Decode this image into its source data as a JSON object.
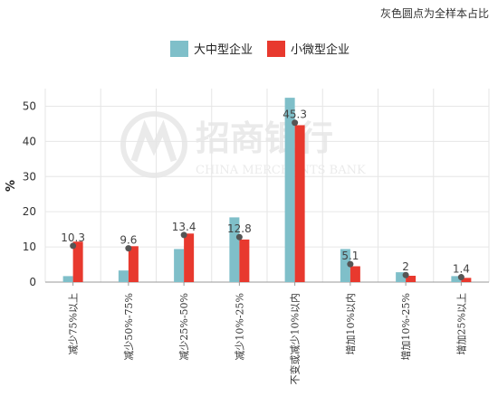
{
  "note": "灰色圆点为全样本占比",
  "watermark": {
    "name": "招商银行",
    "english": "CHINA MERCHANTS BANK"
  },
  "colors": {
    "large": "#7fbfc9",
    "small": "#e8392e",
    "dot": "#555555",
    "grid": "#e6e6e6",
    "axis": "#999999"
  },
  "chart_data": {
    "type": "bar",
    "ylabel": "%",
    "ylim": [
      0,
      55
    ],
    "yticks": [
      0,
      10,
      20,
      30,
      40,
      50
    ],
    "grid": true,
    "legend_position": "top",
    "categories": [
      "减少75%以上",
      "减少50%-75%",
      "减少25%-50%",
      "减少10%-25%",
      "不变或减少10%以内",
      "增加10%以内",
      "增加10%-25%",
      "增加25%以上"
    ],
    "series": [
      {
        "name": "大中型企业",
        "values": [
          1.7,
          3.3,
          9.4,
          18.4,
          52.4,
          9.4,
          2.8,
          1.7
        ]
      },
      {
        "name": "小微型企业",
        "values": [
          11.5,
          10.2,
          13.8,
          12.1,
          44.6,
          4.5,
          1.8,
          1.2
        ]
      }
    ],
    "overall_dots": {
      "values": [
        10.3,
        9.6,
        13.4,
        12.8,
        45.3,
        5.1,
        2,
        1.4
      ],
      "labels": [
        "10.3",
        "9.6",
        "13.4",
        "12.8",
        "45.3",
        "5.1",
        "2",
        "1.4"
      ]
    }
  }
}
